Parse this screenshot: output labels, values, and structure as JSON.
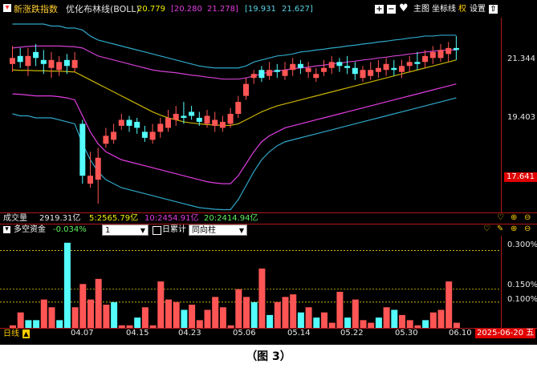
{
  "header": {
    "series_name": "新涨跌指数",
    "indicator": "优化布林线(BOLL)",
    "values": [
      "20.779",
      "[20.280",
      "21.278]",
      "[19.931",
      "21.627]"
    ],
    "controls": [
      "主图",
      "坐标线",
      "权",
      "设置"
    ]
  },
  "price_axis": {
    "ticks": [
      "21.344",
      "19.403",
      "17.641"
    ]
  },
  "volume_bar": {
    "label": "成交量",
    "total": "2919.31亿",
    "items": [
      "5:2565.79亿",
      "10:2454.91亿",
      "20:2414.94亿"
    ]
  },
  "indicator_bar": {
    "name": "多空资金",
    "value": "-0.034%",
    "period_select": "1",
    "period_label": "日累计",
    "mode_select": "同向柱"
  },
  "indicator_axis": {
    "ticks": [
      "0.300%",
      "0.150%",
      "0.100%"
    ]
  },
  "date_axis": {
    "labels": [
      "04.07",
      "04.15",
      "04.23",
      "05.06",
      "05.14",
      "05.22",
      "05.30",
      "06.10"
    ],
    "cursor_date": "2025-06-20 五",
    "period_label": "日线"
  },
  "colors": {
    "up": "#ff5555",
    "down": "#54fcfc",
    "boll_upper": "#2fa7c8",
    "boll_mid": "#c9b400",
    "boll_lower": "#e23ce2",
    "inner_upper": "#d040d0"
  },
  "chart_data": {
    "type": "candlestick",
    "series_name": "新涨跌指数",
    "ylim": [
      17.3,
      21.9
    ],
    "candles": [
      {
        "o": 20.9,
        "c": 21.05,
        "h": 21.35,
        "l": 20.7,
        "up": true
      },
      {
        "o": 21.1,
        "c": 20.95,
        "h": 21.3,
        "l": 20.8,
        "up": false
      },
      {
        "o": 20.85,
        "c": 21.1,
        "h": 21.3,
        "l": 20.6,
        "up": true
      },
      {
        "o": 21.2,
        "c": 21.05,
        "h": 21.4,
        "l": 20.85,
        "up": false
      },
      {
        "o": 21.0,
        "c": 20.9,
        "h": 21.25,
        "l": 20.65,
        "up": false
      },
      {
        "o": 20.8,
        "c": 21.0,
        "h": 21.2,
        "l": 20.55,
        "up": true
      },
      {
        "o": 20.75,
        "c": 20.95,
        "h": 21.1,
        "l": 20.6,
        "up": true
      },
      {
        "o": 21.0,
        "c": 20.85,
        "h": 21.15,
        "l": 20.65,
        "up": false
      },
      {
        "o": 20.8,
        "c": 21.0,
        "h": 21.2,
        "l": 20.7,
        "up": true
      },
      {
        "o": 19.4,
        "c": 18.1,
        "h": 19.5,
        "l": 17.9,
        "up": false
      },
      {
        "o": 17.9,
        "c": 18.1,
        "h": 18.7,
        "l": 17.8,
        "up": true
      },
      {
        "o": 18.0,
        "c": 18.55,
        "h": 18.8,
        "l": 17.4,
        "up": true
      },
      {
        "o": 18.9,
        "c": 19.1,
        "h": 19.3,
        "l": 18.8,
        "up": true
      },
      {
        "o": 19.0,
        "c": 19.2,
        "h": 19.4,
        "l": 18.9,
        "up": true
      },
      {
        "o": 19.35,
        "c": 19.5,
        "h": 19.65,
        "l": 19.25,
        "up": true
      },
      {
        "o": 19.5,
        "c": 19.35,
        "h": 19.6,
        "l": 19.2,
        "up": false
      },
      {
        "o": 19.45,
        "c": 19.3,
        "h": 19.55,
        "l": 19.15,
        "up": false
      },
      {
        "o": 19.2,
        "c": 19.05,
        "h": 19.35,
        "l": 18.95,
        "up": false
      },
      {
        "o": 19.0,
        "c": 19.2,
        "h": 19.4,
        "l": 18.9,
        "up": true
      },
      {
        "o": 19.2,
        "c": 19.4,
        "h": 19.55,
        "l": 19.05,
        "up": true
      },
      {
        "o": 19.3,
        "c": 19.55,
        "h": 19.75,
        "l": 19.2,
        "up": true
      },
      {
        "o": 19.5,
        "c": 19.65,
        "h": 19.85,
        "l": 19.35,
        "up": true
      },
      {
        "o": 19.6,
        "c": 19.55,
        "h": 19.95,
        "l": 19.4,
        "up": false
      },
      {
        "o": 19.7,
        "c": 19.6,
        "h": 19.85,
        "l": 19.5,
        "up": false
      },
      {
        "o": 19.55,
        "c": 19.45,
        "h": 19.7,
        "l": 19.35,
        "up": false
      },
      {
        "o": 19.6,
        "c": 19.4,
        "h": 19.75,
        "l": 19.3,
        "up": true
      },
      {
        "o": 19.35,
        "c": 19.5,
        "h": 19.7,
        "l": 19.2,
        "up": true
      },
      {
        "o": 19.3,
        "c": 19.45,
        "h": 19.6,
        "l": 19.2,
        "up": true
      },
      {
        "o": 19.4,
        "c": 19.65,
        "h": 19.8,
        "l": 19.3,
        "up": true
      },
      {
        "o": 19.65,
        "c": 19.95,
        "h": 20.1,
        "l": 19.55,
        "up": true
      },
      {
        "o": 20.1,
        "c": 20.4,
        "h": 20.55,
        "l": 20.0,
        "up": true
      },
      {
        "o": 20.55,
        "c": 20.65,
        "h": 20.75,
        "l": 20.4,
        "up": true
      },
      {
        "o": 20.75,
        "c": 20.55,
        "h": 20.85,
        "l": 20.45,
        "up": false
      },
      {
        "o": 20.6,
        "c": 20.75,
        "h": 20.95,
        "l": 20.5,
        "up": true
      },
      {
        "o": 20.75,
        "c": 20.7,
        "h": 20.9,
        "l": 20.55,
        "up": false
      },
      {
        "o": 20.6,
        "c": 20.75,
        "h": 20.95,
        "l": 20.5,
        "up": true
      },
      {
        "o": 20.75,
        "c": 20.9,
        "h": 21.05,
        "l": 20.6,
        "up": true
      },
      {
        "o": 20.9,
        "c": 20.8,
        "h": 21.0,
        "l": 20.65,
        "up": false
      },
      {
        "o": 20.7,
        "c": 20.8,
        "h": 20.95,
        "l": 20.55,
        "up": true
      },
      {
        "o": 20.55,
        "c": 20.65,
        "h": 20.8,
        "l": 20.45,
        "up": true
      },
      {
        "o": 20.7,
        "c": 20.8,
        "h": 21.0,
        "l": 20.6,
        "up": true
      },
      {
        "o": 20.8,
        "c": 20.95,
        "h": 21.1,
        "l": 20.65,
        "up": true
      },
      {
        "o": 20.95,
        "c": 20.85,
        "h": 21.05,
        "l": 20.7,
        "up": false
      },
      {
        "o": 20.85,
        "c": 20.8,
        "h": 21.1,
        "l": 20.65,
        "up": false
      },
      {
        "o": 20.8,
        "c": 20.65,
        "h": 20.95,
        "l": 20.5,
        "up": false
      },
      {
        "o": 20.55,
        "c": 20.75,
        "h": 20.85,
        "l": 20.45,
        "up": true
      },
      {
        "o": 20.6,
        "c": 20.75,
        "h": 20.95,
        "l": 20.5,
        "up": true
      },
      {
        "o": 20.7,
        "c": 20.8,
        "h": 21.0,
        "l": 20.55,
        "up": true
      },
      {
        "o": 20.75,
        "c": 20.9,
        "h": 21.05,
        "l": 20.6,
        "up": true
      },
      {
        "o": 20.8,
        "c": 20.75,
        "h": 21.0,
        "l": 20.6,
        "up": false
      },
      {
        "o": 20.7,
        "c": 20.85,
        "h": 21.0,
        "l": 20.55,
        "up": true
      },
      {
        "o": 20.85,
        "c": 20.95,
        "h": 21.1,
        "l": 20.7,
        "up": true
      },
      {
        "o": 20.95,
        "c": 20.9,
        "h": 21.2,
        "l": 20.75,
        "up": false
      },
      {
        "o": 20.95,
        "c": 21.1,
        "h": 21.25,
        "l": 20.8,
        "up": true
      },
      {
        "o": 21.05,
        "c": 21.2,
        "h": 21.35,
        "l": 20.9,
        "up": true
      },
      {
        "o": 21.05,
        "c": 21.25,
        "h": 21.4,
        "l": 20.95,
        "up": true
      },
      {
        "o": 21.15,
        "c": 21.3,
        "h": 21.45,
        "l": 20.95,
        "up": true
      },
      {
        "o": 21.3,
        "c": 21.25,
        "h": 21.6,
        "l": 21.0,
        "up": false
      }
    ],
    "boll_upper": [
      21.9,
      21.9,
      21.9,
      21.9,
      21.9,
      21.85,
      21.85,
      21.8,
      21.8,
      21.75,
      21.6,
      21.5,
      21.45,
      21.4,
      21.35,
      21.3,
      21.25,
      21.2,
      21.15,
      21.1,
      21.05,
      21.0,
      20.95,
      20.9,
      20.85,
      20.82,
      20.8,
      20.8,
      20.8,
      20.8,
      20.85,
      20.95,
      21.0,
      21.05,
      21.1,
      21.12,
      21.15,
      21.2,
      21.22,
      21.25,
      21.27,
      21.3,
      21.32,
      21.35,
      21.37,
      21.4,
      21.42,
      21.45,
      21.47,
      21.5,
      21.52,
      21.55,
      21.57,
      21.6,
      21.6,
      21.62,
      21.62,
      21.62
    ],
    "boll_upper_inner": [
      21.3,
      21.32,
      21.34,
      21.35,
      21.35,
      21.35,
      21.35,
      21.34,
      21.33,
      21.3,
      21.2,
      21.1,
      21.05,
      21.0,
      20.95,
      20.9,
      20.85,
      20.8,
      20.75,
      20.72,
      20.7,
      20.68,
      20.65,
      20.62,
      20.6,
      20.57,
      20.55,
      20.52,
      20.52,
      20.52,
      20.55,
      20.6,
      20.65,
      20.7,
      20.73,
      20.75,
      20.78,
      20.8,
      20.82,
      20.85,
      20.87,
      20.9,
      20.92,
      20.95,
      20.97,
      21.0,
      21.02,
      21.05,
      21.07,
      21.1,
      21.12,
      21.15,
      21.17,
      21.2,
      21.22,
      21.24,
      21.25,
      21.25
    ],
    "boll_mid": [
      20.75,
      20.74,
      20.74,
      20.73,
      20.73,
      20.72,
      20.72,
      20.71,
      20.7,
      20.6,
      20.5,
      20.4,
      20.3,
      20.2,
      20.1,
      20.0,
      19.9,
      19.8,
      19.7,
      19.62,
      19.55,
      19.5,
      19.45,
      19.42,
      19.4,
      19.38,
      19.37,
      19.36,
      19.36,
      19.4,
      19.5,
      19.6,
      19.7,
      19.78,
      19.85,
      19.9,
      19.95,
      20.0,
      20.05,
      20.1,
      20.15,
      20.2,
      20.25,
      20.3,
      20.35,
      20.4,
      20.45,
      20.5,
      20.55,
      20.6,
      20.65,
      20.7,
      20.75,
      20.8,
      20.85,
      20.9,
      20.95,
      21.0
    ],
    "boll_lower_inner": [
      20.15,
      20.14,
      20.12,
      20.1,
      20.1,
      20.1,
      20.08,
      20.05,
      20.0,
      19.6,
      19.2,
      18.9,
      18.7,
      18.6,
      18.5,
      18.45,
      18.4,
      18.35,
      18.3,
      18.25,
      18.2,
      18.15,
      18.1,
      18.05,
      18.0,
      17.95,
      17.92,
      17.9,
      17.9,
      18.1,
      18.4,
      18.7,
      18.95,
      19.1,
      19.2,
      19.3,
      19.35,
      19.4,
      19.45,
      19.5,
      19.55,
      19.6,
      19.65,
      19.7,
      19.75,
      19.8,
      19.85,
      19.9,
      19.95,
      20.0,
      20.05,
      20.1,
      20.15,
      20.2,
      20.25,
      20.3,
      20.35,
      20.4
    ],
    "boll_lower": [
      19.65,
      19.6,
      19.6,
      19.55,
      19.55,
      19.55,
      19.5,
      19.45,
      19.4,
      18.9,
      18.5,
      18.2,
      18.0,
      17.9,
      17.8,
      17.75,
      17.7,
      17.65,
      17.6,
      17.55,
      17.5,
      17.45,
      17.4,
      17.35,
      17.3,
      17.28,
      17.26,
      17.25,
      17.25,
      17.5,
      17.85,
      18.2,
      18.5,
      18.7,
      18.85,
      18.95,
      19.0,
      19.05,
      19.1,
      19.15,
      19.2,
      19.25,
      19.3,
      19.35,
      19.4,
      19.45,
      19.5,
      19.55,
      19.6,
      19.65,
      19.7,
      19.75,
      19.8,
      19.85,
      19.9,
      19.95,
      20.0,
      20.05
    ],
    "indicator": {
      "name": "多空资金",
      "ylim": [
        0,
        0.32
      ],
      "bars": [
        0.01,
        0.06,
        0.03,
        0.03,
        0.11,
        0.08,
        0.03,
        0.33,
        0.08,
        0.17,
        0.11,
        0.19,
        0.09,
        0.1,
        0.01,
        0.01,
        0.04,
        0.08,
        0.01,
        0.18,
        0.11,
        0.1,
        0.07,
        0.09,
        0.03,
        0.07,
        0.12,
        0.08,
        0.01,
        0.15,
        0.12,
        0.1,
        0.23,
        0.05,
        0.1,
        0.12,
        0.13,
        0.06,
        0.08,
        0.04,
        0.06,
        0.02,
        0.14,
        0.04,
        0.11,
        0.03,
        0.02,
        0.04,
        0.08,
        0.07,
        0.05,
        0.03,
        0.01,
        0.03,
        0.06,
        0.07,
        0.18,
        0.02
      ],
      "bars_up": [
        true,
        true,
        false,
        false,
        true,
        true,
        false,
        false,
        true,
        true,
        true,
        true,
        true,
        false,
        true,
        true,
        false,
        true,
        true,
        true,
        true,
        true,
        false,
        true,
        true,
        true,
        true,
        true,
        true,
        true,
        true,
        false,
        true,
        false,
        true,
        true,
        true,
        false,
        true,
        false,
        true,
        true,
        true,
        false,
        true,
        true,
        true,
        false,
        true,
        false,
        true,
        true,
        true,
        false,
        true,
        true,
        true,
        true
      ]
    }
  }
}
